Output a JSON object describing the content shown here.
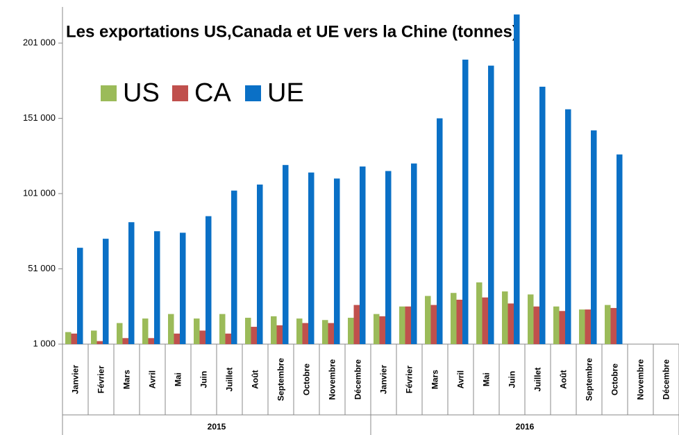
{
  "chart_data": {
    "type": "bar",
    "title": "Les exportations US,Canada et UE vers la Chine    (tonnes)",
    "categories": [
      "Janvier",
      "Février",
      "Mars",
      "Avril",
      "Mai",
      "Juin",
      "Juillet",
      "Août",
      "Septembre",
      "Octobre",
      "Novembre",
      "Décembre",
      "Janvier",
      "Février",
      "Mars",
      "Avril",
      "Mai",
      "Juin",
      "Juillet",
      "Août",
      "Septembre",
      "Octobre",
      "Novembre",
      "Décembre"
    ],
    "groups": [
      "2015",
      "2016"
    ],
    "series": [
      {
        "name": "US",
        "color": "#9bbb59",
        "values": [
          9000,
          10000,
          15000,
          18000,
          21000,
          18000,
          21000,
          18500,
          19500,
          18000,
          17000,
          18500,
          21000,
          26000,
          33000,
          35000,
          42000,
          36000,
          34000,
          26000,
          24000,
          27000,
          null,
          null
        ]
      },
      {
        "name": "CA",
        "color": "#c0504d",
        "values": [
          8000,
          3000,
          5000,
          5000,
          8000,
          10000,
          8000,
          12500,
          13500,
          15000,
          15000,
          27000,
          19500,
          26000,
          27000,
          30500,
          32000,
          28000,
          26000,
          23000,
          24000,
          25000,
          null,
          null
        ]
      },
      {
        "name": "UE",
        "color": "#0a70c6",
        "values": [
          65000,
          71000,
          82000,
          76000,
          75000,
          86000,
          103000,
          107000,
          120000,
          115000,
          111000,
          119000,
          116000,
          121000,
          151000,
          190000,
          186000,
          220000,
          172000,
          157000,
          143000,
          127000,
          null,
          null
        ]
      }
    ],
    "ylim": [
      1000,
      225000
    ],
    "yticks": [
      {
        "value": 1000,
        "label": "1 000"
      },
      {
        "value": 51000,
        "label": "51 000"
      },
      {
        "value": 101000,
        "label": "101 000"
      },
      {
        "value": 151000,
        "label": "151 000"
      },
      {
        "value": 201000,
        "label": "201 000"
      }
    ],
    "legend": "top-left"
  }
}
